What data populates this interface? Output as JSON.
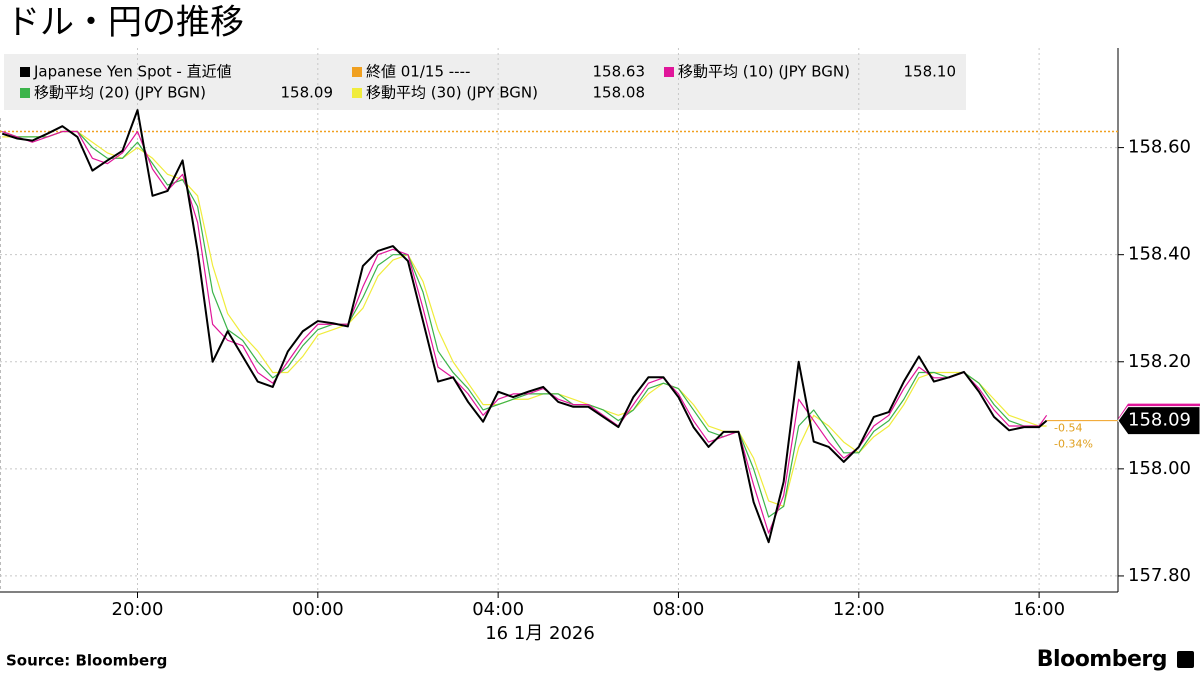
{
  "chart_data": {
    "type": "line",
    "title": "ドル・円の推移",
    "x_label": "16 1月 2026",
    "source": "Source:  Bloomberg",
    "brand": "Bloomberg",
    "x": [
      "2026-01-15T17:00",
      "2026-01-15T17:20",
      "2026-01-15T17:40",
      "2026-01-15T18:00",
      "2026-01-15T18:20",
      "2026-01-15T18:40",
      "2026-01-15T19:00",
      "2026-01-15T19:20",
      "2026-01-15T19:40",
      "2026-01-15T20:00",
      "2026-01-15T20:20",
      "2026-01-15T20:40",
      "2026-01-15T21:00",
      "2026-01-15T21:20",
      "2026-01-15T21:40",
      "2026-01-15T22:00",
      "2026-01-15T22:20",
      "2026-01-15T22:40",
      "2026-01-15T23:00",
      "2026-01-15T23:20",
      "2026-01-15T23:40",
      "2026-01-16T00:00",
      "2026-01-16T00:20",
      "2026-01-16T00:40",
      "2026-01-16T01:00",
      "2026-01-16T01:20",
      "2026-01-16T01:40",
      "2026-01-16T02:00",
      "2026-01-16T02:20",
      "2026-01-16T02:40",
      "2026-01-16T03:00",
      "2026-01-16T03:20",
      "2026-01-16T03:40",
      "2026-01-16T04:00",
      "2026-01-16T04:20",
      "2026-01-16T04:40",
      "2026-01-16T05:00",
      "2026-01-16T05:20",
      "2026-01-16T05:40",
      "2026-01-16T06:00",
      "2026-01-16T06:20",
      "2026-01-16T06:40",
      "2026-01-16T07:00",
      "2026-01-16T07:20",
      "2026-01-16T07:40",
      "2026-01-16T08:00",
      "2026-01-16T08:20",
      "2026-01-16T08:40",
      "2026-01-16T09:00",
      "2026-01-16T09:20",
      "2026-01-16T09:40",
      "2026-01-16T10:00",
      "2026-01-16T10:20",
      "2026-01-16T10:40",
      "2026-01-16T11:00",
      "2026-01-16T11:20",
      "2026-01-16T11:40",
      "2026-01-16T12:00",
      "2026-01-16T12:20",
      "2026-01-16T12:40",
      "2026-01-16T13:00",
      "2026-01-16T13:20",
      "2026-01-16T13:40",
      "2026-01-16T14:00",
      "2026-01-16T14:20",
      "2026-01-16T14:40",
      "2026-01-16T15:00",
      "2026-01-16T15:20",
      "2026-01-16T15:40",
      "2026-01-16T16:00",
      "2026-01-16T16:10"
    ],
    "series": [
      {
        "name": "Japanese Yen Spot - 直近値",
        "color": "#000000",
        "width": 2,
        "values": [
          158.626,
          158.617,
          158.613,
          158.626,
          158.64,
          158.62,
          158.557,
          158.576,
          158.594,
          158.67,
          158.51,
          158.519,
          158.576,
          158.407,
          158.2,
          158.257,
          158.21,
          158.163,
          158.153,
          158.219,
          158.257,
          158.276,
          158.272,
          158.266,
          158.379,
          158.407,
          158.416,
          158.388,
          158.276,
          158.163,
          158.171,
          158.125,
          158.088,
          158.144,
          158.134,
          158.144,
          158.153,
          158.125,
          158.116,
          158.116,
          158.097,
          158.078,
          158.134,
          158.171,
          158.171,
          158.134,
          158.078,
          158.041,
          158.069,
          158.069,
          157.938,
          157.863,
          157.976,
          158.2,
          158.051,
          158.041,
          158.013,
          158.041,
          158.097,
          158.106,
          158.163,
          158.21,
          158.163,
          158.171,
          158.181,
          158.144,
          158.097,
          158.072,
          158.078,
          158.078,
          158.09
        ]
      },
      {
        "name": "移動平均 (10) (JPY BGN)",
        "legend_value": "158.10",
        "color": "#e0169a",
        "width": 1.2,
        "values": [
          158.63,
          158.62,
          158.61,
          158.62,
          158.63,
          158.63,
          158.58,
          158.57,
          158.59,
          158.63,
          158.56,
          158.52,
          158.55,
          158.46,
          158.27,
          158.24,
          158.23,
          158.18,
          158.16,
          158.2,
          158.24,
          158.27,
          158.27,
          158.27,
          158.34,
          158.4,
          158.41,
          158.4,
          158.3,
          158.19,
          158.17,
          158.14,
          158.1,
          158.13,
          158.14,
          158.14,
          158.15,
          158.13,
          158.12,
          158.12,
          158.1,
          158.08,
          158.12,
          158.16,
          158.17,
          158.14,
          158.09,
          158.05,
          158.06,
          158.07,
          157.97,
          157.88,
          157.95,
          158.13,
          158.09,
          158.05,
          158.02,
          158.04,
          158.08,
          158.1,
          158.15,
          158.19,
          158.17,
          158.17,
          158.18,
          158.15,
          158.11,
          158.08,
          158.08,
          158.08,
          158.1
        ]
      },
      {
        "name": "移動平均 (20) (JPY BGN)",
        "legend_value": "158.09",
        "color": "#3cb44b",
        "width": 1.2,
        "values": [
          158.63,
          158.62,
          158.62,
          158.62,
          158.63,
          158.63,
          158.6,
          158.58,
          158.58,
          158.61,
          158.57,
          158.53,
          158.54,
          158.49,
          158.33,
          158.26,
          158.24,
          158.2,
          158.17,
          158.19,
          158.23,
          158.26,
          158.27,
          158.27,
          158.32,
          158.38,
          158.4,
          158.4,
          158.33,
          158.22,
          158.18,
          158.15,
          158.11,
          158.12,
          158.13,
          158.14,
          158.14,
          158.14,
          158.12,
          158.12,
          158.11,
          158.09,
          158.11,
          158.15,
          158.16,
          158.15,
          158.11,
          158.07,
          158.06,
          158.07,
          158,
          157.91,
          157.93,
          158.08,
          158.11,
          158.07,
          158.03,
          158.03,
          158.07,
          158.09,
          158.13,
          158.18,
          158.18,
          158.17,
          158.18,
          158.16,
          158.12,
          158.09,
          158.08,
          158.08,
          158.09
        ]
      },
      {
        "name": "移動平均 (30) (JPY BGN)",
        "legend_value": "158.08",
        "color": "#f0ec3c",
        "width": 1.2,
        "values": [
          158.62,
          158.62,
          158.62,
          158.62,
          158.63,
          158.63,
          158.61,
          158.59,
          158.58,
          158.6,
          158.58,
          158.55,
          158.54,
          158.51,
          158.38,
          158.29,
          158.25,
          158.22,
          158.18,
          158.18,
          158.21,
          158.25,
          158.26,
          158.27,
          158.3,
          158.36,
          158.39,
          158.4,
          158.35,
          158.26,
          158.2,
          158.16,
          158.12,
          158.12,
          158.13,
          158.13,
          158.14,
          158.14,
          158.13,
          158.12,
          158.11,
          158.1,
          158.11,
          158.14,
          158.16,
          158.15,
          158.12,
          158.08,
          158.07,
          158.07,
          158.02,
          157.94,
          157.93,
          158.04,
          158.1,
          158.08,
          158.05,
          158.03,
          158.06,
          158.08,
          158.12,
          158.17,
          158.18,
          158.18,
          158.18,
          158.16,
          158.13,
          158.1,
          158.09,
          158.08,
          158.08
        ]
      }
    ],
    "reference_line": {
      "name": "終値 01/15 ----",
      "value": 158.63,
      "label": "158.63",
      "color": "#f0a020"
    },
    "last_value": {
      "value": 158.09,
      "label": "158.09"
    },
    "change": "-0.54",
    "change_pct": "-0.34%",
    "change_color": "#e0a020",
    "xlim": [
      "2026-01-15T16:57",
      "2026-01-16T17:45"
    ],
    "xticks": [
      {
        "value": "2026-01-15T20:00",
        "label": "20:00"
      },
      {
        "value": "2026-01-16T00:00",
        "label": "00:00"
      },
      {
        "value": "2026-01-16T04:00",
        "label": "04:00"
      },
      {
        "value": "2026-01-16T08:00",
        "label": "08:00"
      },
      {
        "value": "2026-01-16T12:00",
        "label": "12:00"
      },
      {
        "value": "2026-01-16T16:00",
        "label": "16:00"
      }
    ],
    "ylim": [
      157.77,
      158.786
    ],
    "yticks": [
      {
        "value": 157.8,
        "label": "157.80"
      },
      {
        "value": 158,
        "label": "158.00"
      },
      {
        "value": 158.2,
        "label": "158.20"
      },
      {
        "value": 158.4,
        "label": "158.40"
      },
      {
        "value": 158.6,
        "label": "158.60"
      }
    ],
    "grid": true
  }
}
